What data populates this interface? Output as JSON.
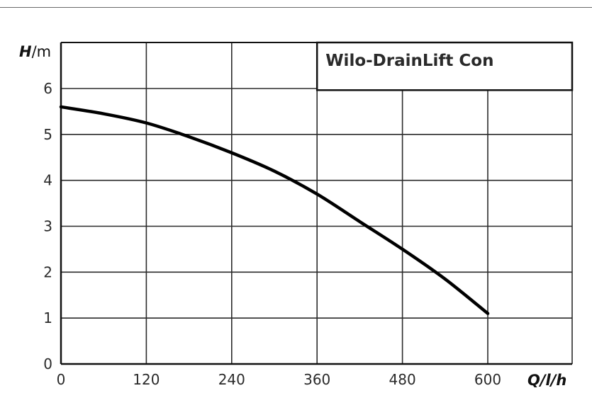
{
  "chart_data": {
    "type": "line",
    "title": "Wilo-DrainLift Con",
    "ylabel": {
      "symbol": "H",
      "unit": "/m"
    },
    "xlabel": {
      "symbol": "Q",
      "unit": "/l/h"
    },
    "xlim": [
      0,
      600
    ],
    "ylim": [
      0,
      6
    ],
    "x_ticks": [
      0,
      120,
      240,
      360,
      480,
      600
    ],
    "y_ticks": [
      0,
      1,
      2,
      3,
      4,
      5,
      6
    ],
    "grid": true,
    "series": [
      {
        "x": [
          0,
          60,
          120,
          180,
          240,
          300,
          360,
          420,
          480,
          540,
          600
        ],
        "y": [
          5.6,
          5.45,
          5.25,
          4.95,
          4.6,
          4.2,
          3.7,
          3.1,
          2.5,
          1.85,
          1.1
        ]
      }
    ]
  }
}
